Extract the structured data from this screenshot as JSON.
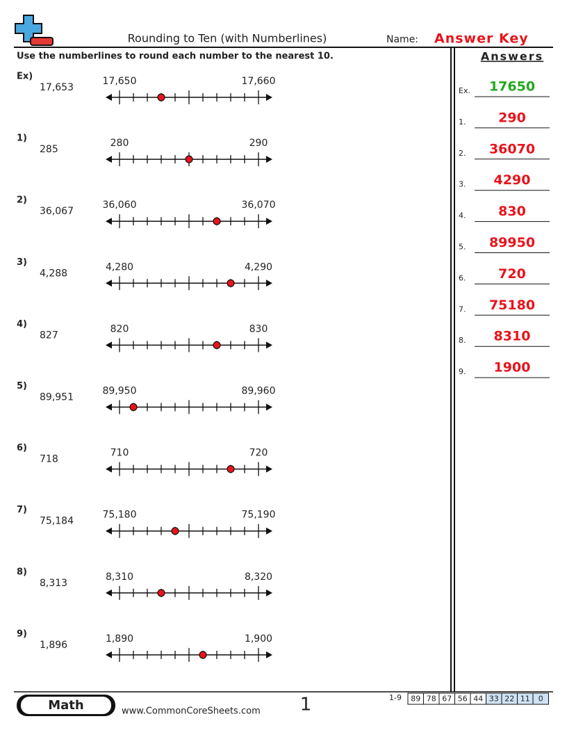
{
  "header": {
    "title": "Rounding to Ten (with Numberlines)",
    "name_label": "Name:",
    "name_value": "Answer Key"
  },
  "instructions": "Use the numberlines to round each number to the nearest 10.",
  "problems": [
    {
      "label": "Ex)",
      "number": "17,653",
      "start": "17,650",
      "end": "17,660"
    },
    {
      "label": "1)",
      "number": "285",
      "start": "280",
      "end": "290"
    },
    {
      "label": "2)",
      "number": "36,067",
      "start": "36,060",
      "end": "36,070"
    },
    {
      "label": "3)",
      "number": "4,288",
      "start": "4,280",
      "end": "4,290"
    },
    {
      "label": "4)",
      "number": "827",
      "start": "820",
      "end": "830"
    },
    {
      "label": "5)",
      "number": "89,951",
      "start": "89,950",
      "end": "89,960"
    },
    {
      "label": "6)",
      "number": "718",
      "start": "710",
      "end": "720"
    },
    {
      "label": "7)",
      "number": "75,184",
      "start": "75,180",
      "end": "75,190"
    },
    {
      "label": "8)",
      "number": "8,313",
      "start": "8,310",
      "end": "8,320"
    },
    {
      "label": "9)",
      "number": "1,896",
      "start": "1,890",
      "end": "1,900"
    }
  ],
  "answers": {
    "title": "Answers",
    "items": [
      {
        "label": "Ex.",
        "value": "17650"
      },
      {
        "label": "1.",
        "value": "290"
      },
      {
        "label": "2.",
        "value": "36070"
      },
      {
        "label": "3.",
        "value": "4290"
      },
      {
        "label": "4.",
        "value": "830"
      },
      {
        "label": "5.",
        "value": "89950"
      },
      {
        "label": "6.",
        "value": "720"
      },
      {
        "label": "7.",
        "value": "75180"
      },
      {
        "label": "8.",
        "value": "8310"
      },
      {
        "label": "9.",
        "value": "1900"
      }
    ]
  },
  "footer": {
    "subject": "Math",
    "website": "www.CommonCoreSheets.com",
    "page": "1",
    "score_range": "1-9",
    "scores": [
      "89",
      "78",
      "67",
      "56",
      "44",
      "33",
      "22",
      "11",
      "0"
    ]
  }
}
